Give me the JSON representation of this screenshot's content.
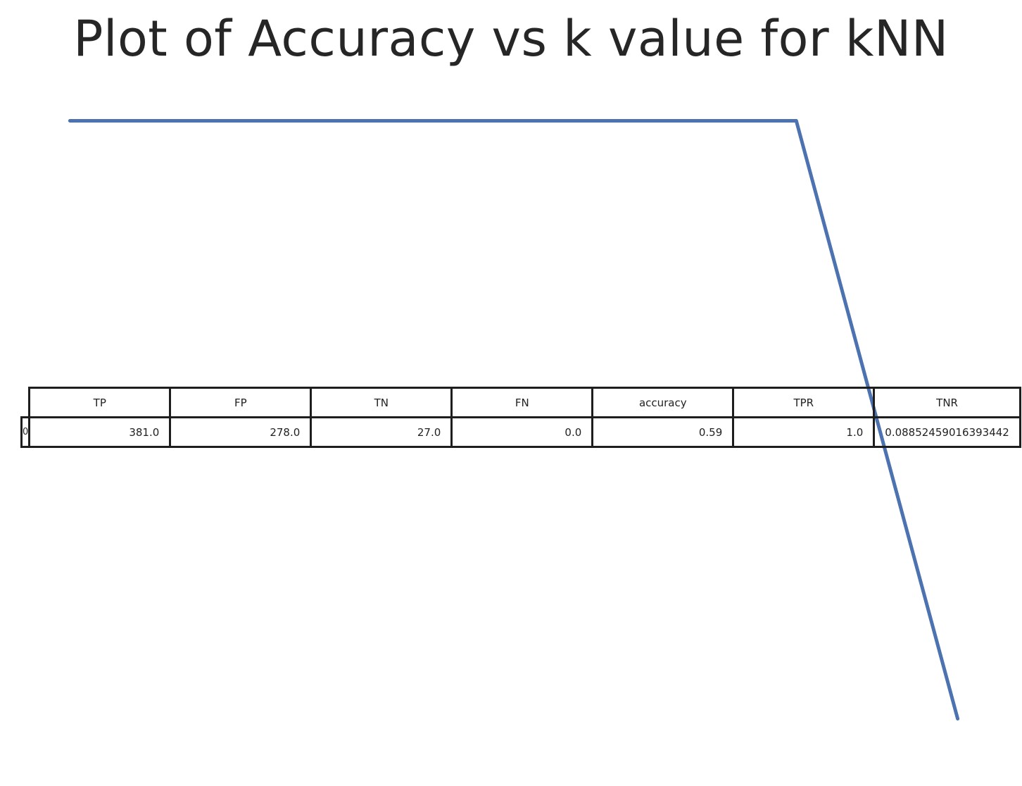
{
  "chart_data": {
    "type": "line",
    "title": "Plot of Accuracy vs k value for kNN",
    "series": [
      {
        "color": "#4c72b0",
        "x": [
          1,
          2,
          3,
          4,
          5,
          6,
          7,
          8,
          9,
          10,
          11,
          12
        ],
        "y": [
          1.0,
          1.0,
          1.0,
          1.0,
          1.0,
          1.0,
          1.0,
          1.0,
          1.0,
          1.0,
          0.9,
          0.8
        ]
      }
    ],
    "xlim": [
      0.7,
      12.3
    ],
    "ylim": [
      0.79,
      1.01
    ],
    "grid": false,
    "axes_visible": false
  },
  "table": {
    "columns": [
      "TP",
      "FP",
      "TN",
      "FN",
      "accuracy",
      "TPR",
      "TNR"
    ],
    "rows": [
      {
        "index": "0",
        "cells": [
          "381.0",
          "278.0",
          "27.0",
          "0.0",
          "0.59",
          "1.0",
          "0.08852459016393442"
        ]
      }
    ]
  }
}
